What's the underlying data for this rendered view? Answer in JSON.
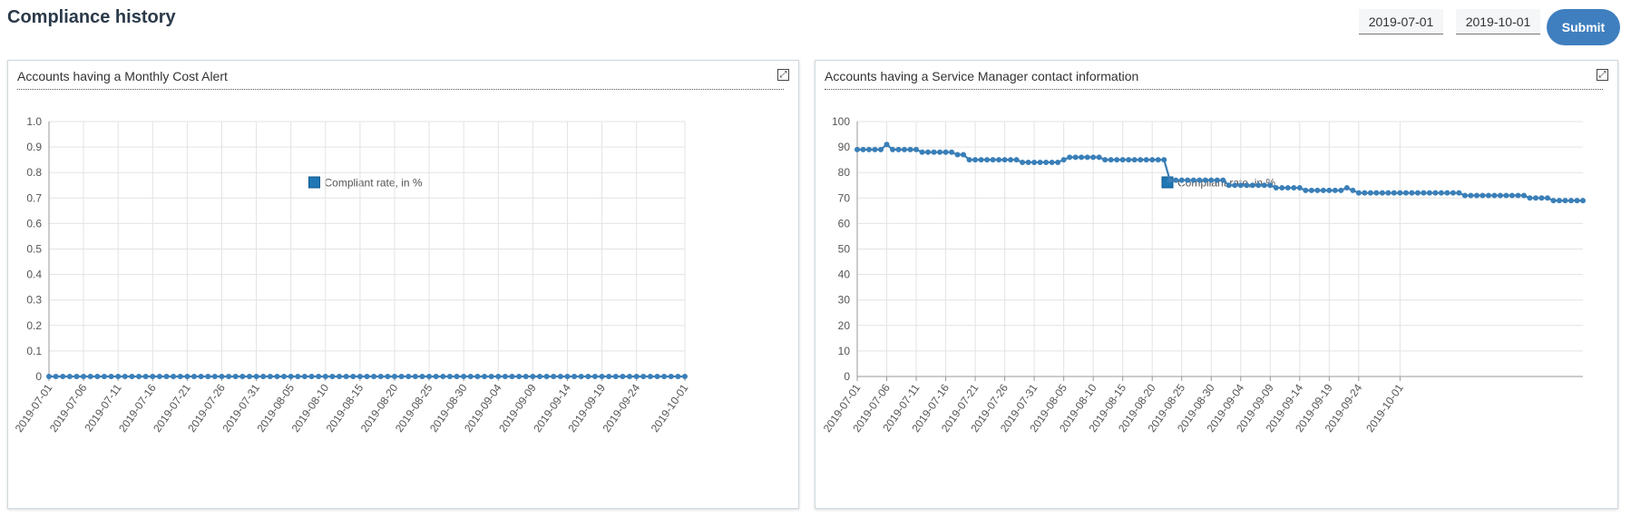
{
  "page": {
    "title": "Compliance history"
  },
  "filters": {
    "start_date": "2019-07-01",
    "end_date": "2019-10-01",
    "submit_label": "Submit"
  },
  "colors": {
    "series": "#3a7fb8",
    "legend_swatch": "#1f77b4",
    "grid": "#e3e3e3",
    "submit": "#3f7fbf"
  },
  "chart_data": [
    {
      "type": "line",
      "title": "Accounts having a Monthly Cost Alert",
      "legend_position": "top-center",
      "grid": true,
      "xlabel": "",
      "ylabel": "",
      "x_start": "2019-07-01",
      "x_ticks": [
        "2019-07-01",
        "2019-07-06",
        "2019-07-11",
        "2019-07-16",
        "2019-07-21",
        "2019-07-26",
        "2019-07-31",
        "2019-08-05",
        "2019-08-10",
        "2019-08-15",
        "2019-08-20",
        "2019-08-25",
        "2019-08-30",
        "2019-09-04",
        "2019-09-09",
        "2019-09-14",
        "2019-09-19",
        "2019-09-24",
        "2019-10-01"
      ],
      "y_ticks": [
        "0",
        "0.1",
        "0.2",
        "0.3",
        "0.4",
        "0.5",
        "0.6",
        "0.7",
        "0.8",
        "0.9",
        "1.0"
      ],
      "ylim": [
        0,
        1
      ],
      "series": [
        {
          "name": "Compliant rate, in %",
          "values": [
            0,
            0,
            0,
            0,
            0,
            0,
            0,
            0,
            0,
            0,
            0,
            0,
            0,
            0,
            0,
            0,
            0,
            0,
            0,
            0,
            0,
            0,
            0,
            0,
            0,
            0,
            0,
            0,
            0,
            0,
            0,
            0,
            0,
            0,
            0,
            0,
            0,
            0,
            0,
            0,
            0,
            0,
            0,
            0,
            0,
            0,
            0,
            0,
            0,
            0,
            0,
            0,
            0,
            0,
            0,
            0,
            0,
            0,
            0,
            0,
            0,
            0,
            0,
            0,
            0,
            0,
            0,
            0,
            0,
            0,
            0,
            0,
            0,
            0,
            0,
            0,
            0,
            0,
            0,
            0,
            0,
            0,
            0,
            0,
            0,
            0,
            0,
            0,
            0,
            0,
            0,
            0,
            0
          ]
        }
      ]
    },
    {
      "type": "line",
      "title": "Accounts having a Service Manager contact information",
      "legend_position": "top-center",
      "grid": true,
      "xlabel": "",
      "ylabel": "",
      "x_start": "2019-07-01",
      "x_ticks": [
        "2019-07-01",
        "2019-07-06",
        "2019-07-11",
        "2019-07-16",
        "2019-07-21",
        "2019-07-26",
        "2019-07-31",
        "2019-08-05",
        "2019-08-10",
        "2019-08-15",
        "2019-08-20",
        "2019-08-25",
        "2019-08-30",
        "2019-09-04",
        "2019-09-09",
        "2019-09-14",
        "2019-09-19",
        "2019-09-24",
        "2019-10-01"
      ],
      "y_ticks": [
        "0",
        "10",
        "20",
        "30",
        "40",
        "50",
        "60",
        "70",
        "80",
        "90",
        "100"
      ],
      "ylim": [
        0,
        100
      ],
      "series": [
        {
          "name": "Compliant rate, in %",
          "values": [
            89,
            89,
            89,
            89,
            89,
            91,
            89,
            89,
            89,
            89,
            89,
            88,
            88,
            88,
            88,
            88,
            88,
            87,
            87,
            85,
            85,
            85,
            85,
            85,
            85,
            85,
            85,
            85,
            84,
            84,
            84,
            84,
            84,
            84,
            84,
            85,
            86,
            86,
            86,
            86,
            86,
            86,
            85,
            85,
            85,
            85,
            85,
            85,
            85,
            85,
            85,
            85,
            85,
            77,
            77,
            77,
            77,
            77,
            77,
            77,
            77,
            77,
            77,
            75,
            75,
            75,
            75,
            75,
            75,
            75,
            75,
            74,
            74,
            74,
            74,
            74,
            73,
            73,
            73,
            73,
            73,
            73,
            73,
            74,
            73,
            72,
            72,
            72,
            72,
            72,
            72,
            72,
            72,
            72,
            72,
            72,
            72,
            72,
            72,
            72,
            72,
            72,
            72,
            71,
            71,
            71,
            71,
            71,
            71,
            71,
            71,
            71,
            71,
            71,
            70,
            70,
            70,
            70,
            69,
            69,
            69,
            69,
            69,
            69
          ]
        }
      ]
    }
  ]
}
